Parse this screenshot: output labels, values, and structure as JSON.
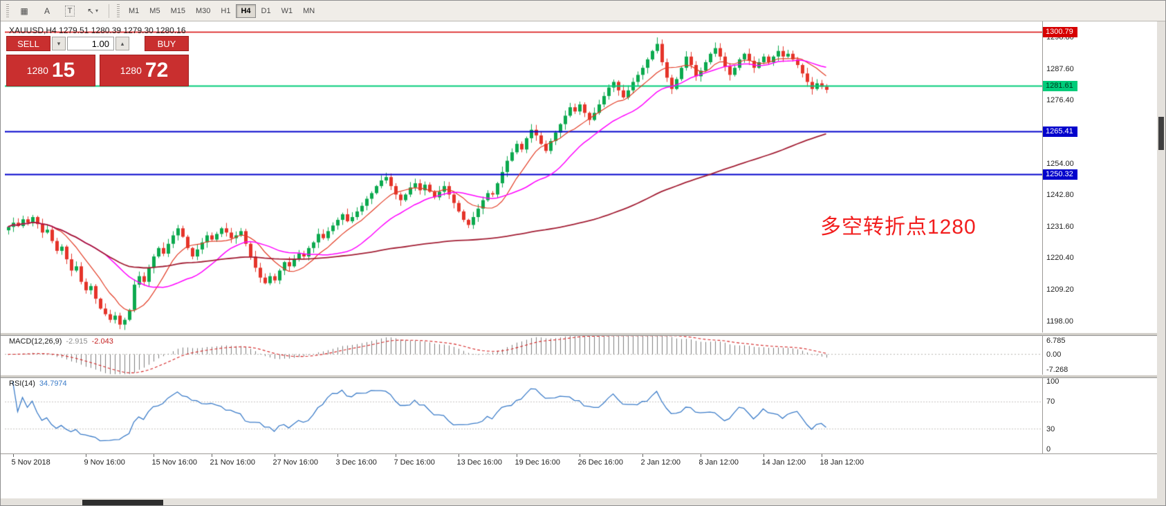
{
  "toolbar": {
    "icon_buttons": [
      {
        "id": "chart-grid",
        "glyph": "▦"
      },
      {
        "id": "text-label-tool",
        "glyph": "A"
      },
      {
        "id": "text-tool",
        "glyph": "T",
        "boxed": true
      },
      {
        "id": "line-studies",
        "glyph": "↖",
        "caret": "▾"
      }
    ],
    "timeframes": [
      "M1",
      "M5",
      "M15",
      "M30",
      "H1",
      "H4",
      "D1",
      "W1",
      "MN"
    ],
    "active_timeframe": "H4"
  },
  "chart": {
    "symbol_title": "XAUUSD,H4  1279.51 1280.39 1279.30 1280.16"
  },
  "trade_panel": {
    "sell_label": "SELL",
    "buy_label": "BUY",
    "volume": "1.00",
    "sell_price_big": "1280",
    "sell_price_pips": "15",
    "buy_price_big": "1280",
    "buy_price_pips": "72",
    "icons": {
      "volume_down": "▾",
      "volume_up": "▴"
    }
  },
  "chart_data": {
    "type": "candlestick",
    "symbol": "XAUUSD",
    "timeframe": "H4",
    "ohlc": {
      "open": 1279.51,
      "high": 1280.39,
      "low": 1279.3,
      "close": 1280.16
    },
    "price_range": [
      1194.0,
      1303.5
    ],
    "y_axis_labels": [
      "1298.80",
      "1287.60",
      "1276.40",
      "1254.00",
      "1242.80",
      "1231.60",
      "1220.40",
      "1209.20",
      "1198.00"
    ],
    "levels": [
      {
        "price": 1300.79,
        "label": "1300.79",
        "color": "#d60000",
        "width": 1.5,
        "text": "#ffffff",
        "type": "resistance-line"
      },
      {
        "price": 1281.61,
        "label": "1281.61",
        "color": "#00cc7a",
        "width": 2,
        "text": "#00391f",
        "type": "price-line"
      },
      {
        "price": 1265.41,
        "label": "1265.41",
        "color": "#0202cc",
        "width": 2,
        "text": "#ffffff",
        "type": "support-line"
      },
      {
        "price": 1250.32,
        "label": "1250.32",
        "color": "#0202cc",
        "width": 2,
        "text": "#ffffff",
        "type": "support-line"
      }
    ],
    "candle_colors": {
      "up": "#0ca94e",
      "down": "#e5342a"
    },
    "closes": [
      1231.5,
      1233.0,
      1231.8,
      1234.2,
      1233.0,
      1235.0,
      1232.5,
      1229.5,
      1230.5,
      1226.5,
      1223.0,
      1224.5,
      1220.0,
      1216.0,
      1217.5,
      1212.0,
      1209.0,
      1210.5,
      1206.0,
      1202.5,
      1200.5,
      1198.5,
      1200.0,
      1196.8,
      1198.5,
      1202.0,
      1211.0,
      1214.0,
      1212.0,
      1217.0,
      1221.0,
      1224.0,
      1222.0,
      1225.5,
      1228.5,
      1231.0,
      1228.0,
      1224.0,
      1221.0,
      1223.5,
      1226.0,
      1228.5,
      1227.0,
      1229.0,
      1231.0,
      1229.5,
      1227.5,
      1228.5,
      1230.0,
      1225.5,
      1221.0,
      1217.0,
      1213.5,
      1211.5,
      1214.0,
      1212.5,
      1216.0,
      1219.0,
      1217.5,
      1220.0,
      1222.0,
      1221.0,
      1224.0,
      1226.0,
      1229.0,
      1227.5,
      1230.0,
      1232.0,
      1234.0,
      1236.0,
      1233.5,
      1235.0,
      1237.0,
      1239.0,
      1241.5,
      1243.5,
      1246.0,
      1248.0,
      1249.2,
      1246.0,
      1243.0,
      1241.0,
      1243.0,
      1245.5,
      1247.0,
      1244.5,
      1246.5,
      1244.0,
      1242.0,
      1244.0,
      1246.0,
      1243.0,
      1240.0,
      1237.0,
      1234.0,
      1232.2,
      1235.0,
      1238.0,
      1241.0,
      1243.5,
      1243.0,
      1247.0,
      1251.0,
      1255.0,
      1258.0,
      1261.0,
      1259.0,
      1263.0,
      1266.0,
      1264.0,
      1261.0,
      1258.5,
      1262.0,
      1265.0,
      1268.0,
      1271.0,
      1274.0,
      1272.5,
      1275.0,
      1272.0,
      1269.5,
      1272.0,
      1275.0,
      1278.0,
      1281.0,
      1283.0,
      1280.0,
      1277.5,
      1280.0,
      1283.0,
      1285.5,
      1288.0,
      1291.0,
      1294.0,
      1296.5,
      1290.0,
      1284.5,
      1280.5,
      1284.0,
      1288.0,
      1292.0,
      1289.0,
      1285.0,
      1287.0,
      1290.0,
      1293.0,
      1295.0,
      1292.0,
      1288.5,
      1285.5,
      1288.0,
      1291.0,
      1293.0,
      1290.5,
      1288.0,
      1290.0,
      1292.0,
      1290.0,
      1292.0,
      1294.0,
      1292.0,
      1293.0,
      1291.0,
      1289.0,
      1286.0,
      1283.0,
      1280.5,
      1282.5,
      1281.3,
      1280.2
    ],
    "spike_high": {
      "index": 134,
      "price": 1298.8
    },
    "x_labels": [
      {
        "label": "5 Nov 2018",
        "index": 1
      },
      {
        "label": "9 Nov 16:00",
        "index": 16
      },
      {
        "label": "15 Nov 16:00",
        "index": 30
      },
      {
        "label": "21 Nov 16:00",
        "index": 42
      },
      {
        "label": "27 Nov 16:00",
        "index": 55
      },
      {
        "label": "3 Dec 16:00",
        "index": 68
      },
      {
        "label": "7 Dec 16:00",
        "index": 80
      },
      {
        "label": "13 Dec 16:00",
        "index": 93
      },
      {
        "label": "19 Dec 16:00",
        "index": 105
      },
      {
        "label": "26 Dec 16:00",
        "index": 118
      },
      {
        "label": "2 Jan 12:00",
        "index": 131
      },
      {
        "label": "8 Jan 12:00",
        "index": 143
      },
      {
        "label": "14 Jan 12:00",
        "index": 156
      },
      {
        "label": "18 Jan 12:00",
        "index": 168
      }
    ],
    "moving_averages": [
      {
        "name": "fast",
        "period": 9,
        "color": "#e23b24",
        "width": 1.2
      },
      {
        "name": "medium",
        "period": 21,
        "color": "#ff00ff",
        "width": 1.5
      },
      {
        "name": "slow",
        "period": 110,
        "color": "#a21d33",
        "width": 1.8
      }
    ],
    "annotation": {
      "text": "多空转折点1280",
      "color": "#f21d1d"
    },
    "macd": {
      "title": "MACD(12,26,9)",
      "value_main": "-2.915",
      "value_signal": "-2.043",
      "axis_labels": [
        "6.785",
        "0.00",
        "-7.268"
      ],
      "range": [
        -7.8,
        7.3
      ],
      "histogram_color": "#7d7d7d",
      "signal_color": "#d42222"
    },
    "rsi": {
      "title": "RSI(14)",
      "value": "34.7974",
      "period": 14,
      "axis_labels": [
        100,
        70,
        30,
        0
      ],
      "levels": [
        70,
        30
      ],
      "line_color": "#3a7bc8"
    }
  }
}
